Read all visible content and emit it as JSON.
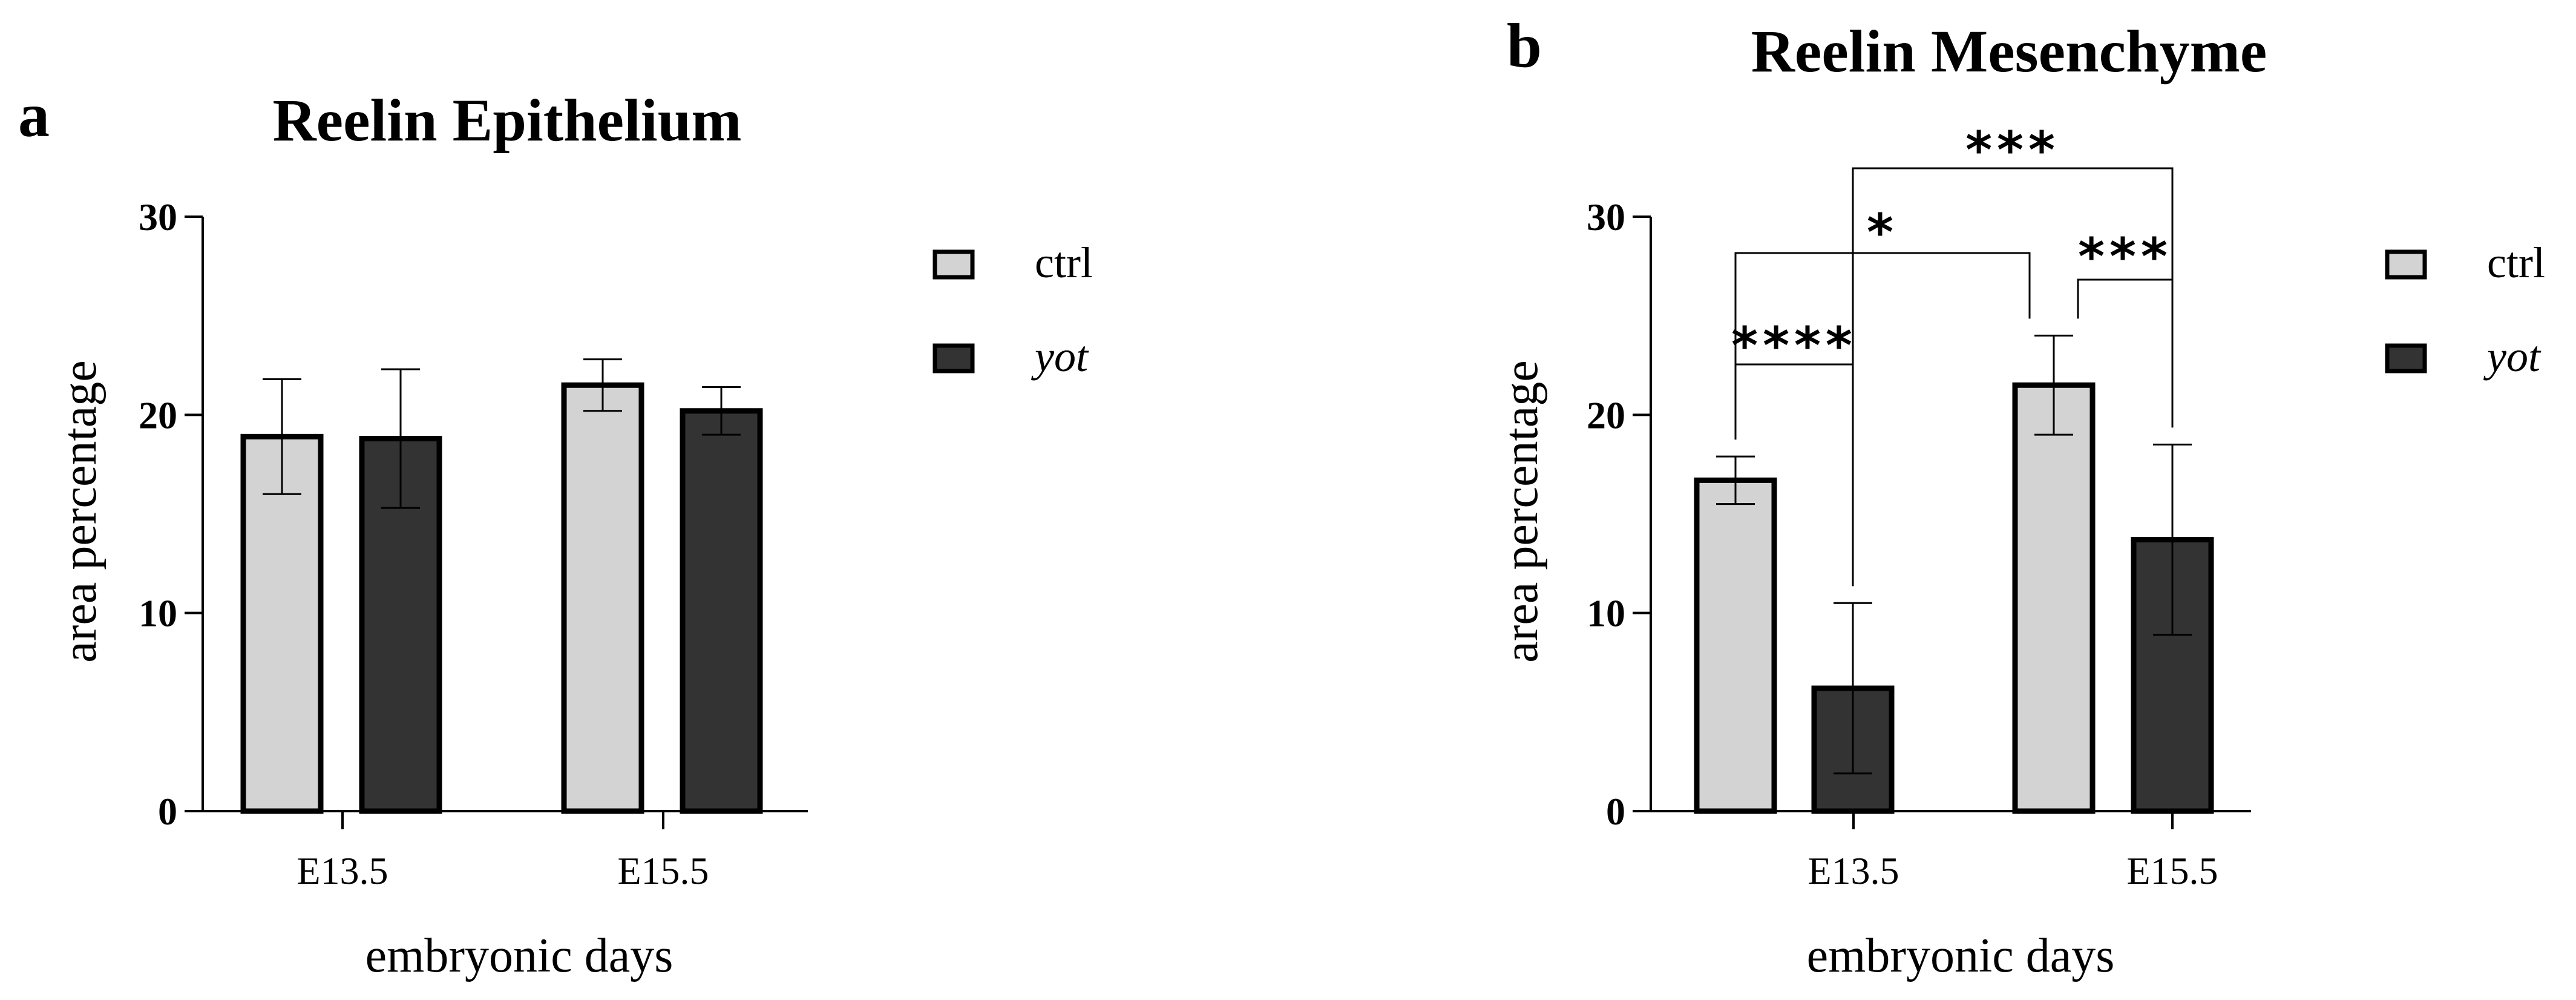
{
  "chart_data": [
    {
      "type": "bar",
      "panel": "a",
      "title": "Reelin Epithelium",
      "xlabel": "embryonic days",
      "ylabel": "area percentage",
      "ylim": [
        0,
        30
      ],
      "yticks": [
        "0",
        "10",
        "20",
        "30"
      ],
      "categories": [
        "E13.5",
        "E15.5"
      ],
      "series": [
        {
          "name": "ctrl",
          "italic": false,
          "color": "#d3d3d3",
          "values": [
            18.9,
            21.5
          ],
          "errors": [
            2.9,
            1.3
          ]
        },
        {
          "name": "yot",
          "italic": true,
          "color": "#333333",
          "values": [
            18.8,
            20.2
          ],
          "errors": [
            3.5,
            1.2
          ]
        }
      ],
      "significance": []
    },
    {
      "type": "bar",
      "panel": "b",
      "title": "Reelin Mesenchyme",
      "xlabel": "embryonic days",
      "ylabel": "area percentage",
      "ylim": [
        0,
        30
      ],
      "yticks": [
        "0",
        "10",
        "20",
        "30"
      ],
      "categories": [
        "E13.5",
        "E15.5"
      ],
      "series": [
        {
          "name": "ctrl",
          "italic": false,
          "color": "#d3d3d3",
          "values": [
            16.7,
            21.5
          ],
          "errors": [
            1.2,
            2.5
          ]
        },
        {
          "name": "yot",
          "italic": true,
          "color": "#333333",
          "values": [
            6.2,
            13.7
          ],
          "errors": [
            4.3,
            4.8
          ]
        }
      ],
      "significance": [
        {
          "label": "****",
          "from": "E13.5|ctrl",
          "to": "E13.5|yot"
        },
        {
          "label": "***",
          "from": "E15.5|ctrl",
          "to": "E15.5|yot"
        },
        {
          "label": "*",
          "from": "E13.5|ctrl",
          "to": "E15.5|ctrl"
        },
        {
          "label": "***",
          "from": "E13.5|yot",
          "to": "E15.5|yot"
        }
      ]
    }
  ],
  "colors": {
    "axis": "#000000",
    "ctrl": "#d3d3d3",
    "yot": "#333333"
  }
}
